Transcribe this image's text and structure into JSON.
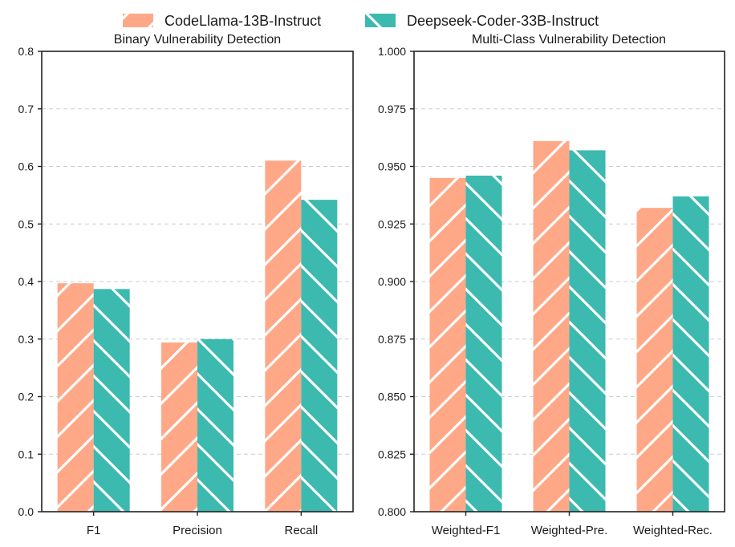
{
  "legend": {
    "items": [
      {
        "label": "CodeLlama-13B-Instruct",
        "color": "#FFA888",
        "hatch": "forward"
      },
      {
        "label": "Deepseek-Coder-33B-Instruct",
        "color": "#3CBAB0",
        "hatch": "back"
      }
    ],
    "placement": "top-center"
  },
  "chart_data": [
    {
      "type": "bar",
      "title": "Binary Vulnerability Detection",
      "xlabel": "",
      "ylabel": "",
      "categories": [
        "F1",
        "Precision",
        "Recall"
      ],
      "series": [
        {
          "name": "CodeLlama-13B-Instruct",
          "values": [
            0.397,
            0.294,
            0.61
          ]
        },
        {
          "name": "Deepseek-Coder-33B-Instruct",
          "values": [
            0.387,
            0.3,
            0.542
          ]
        }
      ],
      "ylim": [
        0,
        0.8
      ],
      "yticks": [
        0.0,
        0.1,
        0.2,
        0.3,
        0.4,
        0.5,
        0.6,
        0.7,
        0.8
      ],
      "ytick_labels": [
        "0.0",
        "0.1",
        "0.2",
        "0.3",
        "0.4",
        "0.5",
        "0.6",
        "0.7",
        "0.8"
      ],
      "grid": "y-dashed"
    },
    {
      "type": "bar",
      "title": "Multi-Class Vulnerability Detection",
      "xlabel": "",
      "ylabel": "",
      "categories": [
        "Weighted-F1",
        "Weighted-Pre.",
        "Weighted-Rec."
      ],
      "series": [
        {
          "name": "CodeLlama-13B-Instruct",
          "values": [
            0.945,
            0.961,
            0.932
          ]
        },
        {
          "name": "Deepseek-Coder-33B-Instruct",
          "values": [
            0.946,
            0.957,
            0.937
          ]
        }
      ],
      "ylim": [
        0.8,
        1.0
      ],
      "yticks": [
        0.8,
        0.825,
        0.85,
        0.875,
        0.9,
        0.925,
        0.95,
        0.975,
        1.0
      ],
      "ytick_labels": [
        "0.800",
        "0.825",
        "0.850",
        "0.875",
        "0.900",
        "0.925",
        "0.950",
        "0.975",
        "1.000"
      ],
      "grid": "y-dashed"
    }
  ]
}
